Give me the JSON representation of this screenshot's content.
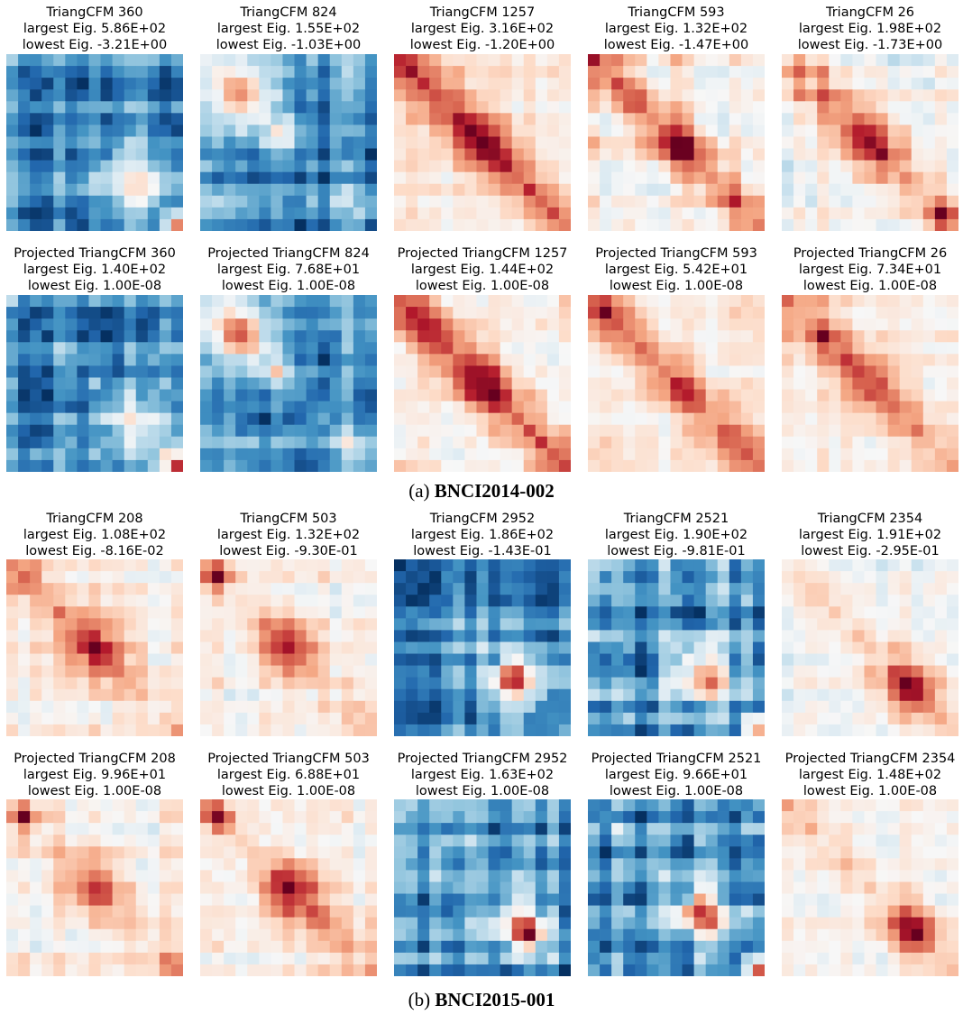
{
  "colormap": "RdBu_r",
  "caption_a": {
    "prefix": "(a)",
    "dataset": "BNCI2014-002"
  },
  "caption_b": {
    "prefix": "(b)",
    "dataset": "BNCI2015-001"
  },
  "chart_data": [
    {
      "type": "heatmap",
      "title": [
        "TriangCFM 360",
        "largest Eig. 5.86E+02",
        "lowest Eig. -3.21E+00"
      ],
      "pattern": {
        "base": -0.7,
        "diag_amp": 0.1,
        "hot": [
          10,
          11
        ],
        "hot_amp": 0.7,
        "corner": [
          14,
          14
        ],
        "corner_amp": 1.0,
        "seed": 11
      }
    },
    {
      "type": "heatmap",
      "title": [
        "TriangCFM 824",
        "largest Eig. 1.55E+02",
        "lowest Eig. -1.03E+00"
      ],
      "pattern": {
        "base": -0.65,
        "diag_amp": 0.15,
        "hot": [
          3,
          3
        ],
        "hot_amp": 0.9,
        "corner": [
          6,
          7
        ],
        "corner_amp": 0.8,
        "seed": 23
      }
    },
    {
      "type": "heatmap",
      "title": [
        "TriangCFM 1257",
        "largest Eig. 3.16E+02",
        "lowest Eig. -1.20E+00"
      ],
      "pattern": {
        "base": 0.05,
        "diag_amp": 1.0,
        "hot": [
          7,
          7
        ],
        "hot_amp": 0.5,
        "corner": [
          0,
          14
        ],
        "corner_amp": 0.4,
        "seed": 37
      }
    },
    {
      "type": "heatmap",
      "title": [
        "TriangCFM 593",
        "largest Eig. 1.32E+02",
        "lowest Eig. -1.47E+00"
      ],
      "pattern": {
        "base": 0.0,
        "diag_amp": 0.9,
        "hot": [
          7,
          7
        ],
        "hot_amp": 0.5,
        "corner": [
          1,
          7
        ],
        "corner_amp": 0.5,
        "seed": 41
      }
    },
    {
      "type": "heatmap",
      "title": [
        "TriangCFM 26",
        "largest Eig. 1.98E+02",
        "lowest Eig. -1.73E+00"
      ],
      "pattern": {
        "base": 0.05,
        "diag_amp": 0.7,
        "hot": [
          7,
          7
        ],
        "hot_amp": 0.5,
        "corner": [
          13,
          13
        ],
        "corner_amp": 0.6,
        "seed": 53
      }
    },
    {
      "type": "heatmap",
      "title": [
        "Projected TriangCFM 360",
        "largest Eig. 1.40E+02",
        "lowest Eig. 1.00E-08"
      ],
      "pattern": {
        "base": -0.7,
        "diag_amp": 0.15,
        "hot": [
          10,
          10
        ],
        "hot_amp": 0.6,
        "corner": [
          14,
          14
        ],
        "corner_amp": 1.0,
        "seed": 12
      }
    },
    {
      "type": "heatmap",
      "title": [
        "Projected TriangCFM 824",
        "largest Eig. 7.68E+01",
        "lowest Eig. 1.00E-08"
      ],
      "pattern": {
        "base": -0.65,
        "diag_amp": 0.3,
        "hot": [
          3,
          3
        ],
        "hot_amp": 0.9,
        "corner": [
          6,
          6
        ],
        "corner_amp": 0.7,
        "seed": 24
      }
    },
    {
      "type": "heatmap",
      "title": [
        "Projected TriangCFM 1257",
        "largest Eig. 1.44E+02",
        "lowest Eig. 1.00E-08"
      ],
      "pattern": {
        "base": 0.05,
        "diag_amp": 1.0,
        "hot": [
          7,
          7
        ],
        "hot_amp": 0.5,
        "corner": [
          0,
          14
        ],
        "corner_amp": 0.4,
        "seed": 38
      }
    },
    {
      "type": "heatmap",
      "title": [
        "Projected TriangCFM 593",
        "largest Eig. 5.42E+01",
        "lowest Eig. 1.00E-08"
      ],
      "pattern": {
        "base": 0.0,
        "diag_amp": 0.9,
        "hot": [
          7,
          7
        ],
        "hot_amp": 0.4,
        "corner": [
          1,
          1
        ],
        "corner_amp": 0.6,
        "seed": 42
      }
    },
    {
      "type": "heatmap",
      "title": [
        "Projected TriangCFM 26",
        "largest Eig. 7.34E+01",
        "lowest Eig. 1.00E-08"
      ],
      "pattern": {
        "base": 0.05,
        "diag_amp": 0.7,
        "hot": [
          7,
          7
        ],
        "hot_amp": 0.5,
        "corner": [
          3,
          3
        ],
        "corner_amp": 0.6,
        "seed": 54
      }
    },
    {
      "type": "heatmap",
      "title": [
        "TriangCFM 208",
        "largest Eig. 1.08E+02",
        "lowest Eig. -8.16E-02"
      ],
      "pattern": {
        "base": 0.05,
        "diag_amp": 0.4,
        "hot": [
          7,
          7
        ],
        "hot_amp": 0.8,
        "corner": [
          1,
          1
        ],
        "corner_amp": 0.9,
        "seed": 61
      }
    },
    {
      "type": "heatmap",
      "title": [
        "TriangCFM 503",
        "largest Eig. 1.32E+02",
        "lowest Eig. -9.30E-01"
      ],
      "pattern": {
        "base": 0.05,
        "diag_amp": 0.4,
        "hot": [
          7,
          7
        ],
        "hot_amp": 0.8,
        "corner": [
          1,
          1
        ],
        "corner_amp": 0.9,
        "seed": 67
      }
    },
    {
      "type": "heatmap",
      "title": [
        "TriangCFM 2952",
        "largest Eig. 1.86E+02",
        "lowest Eig. -1.43E-01"
      ],
      "pattern": {
        "base": -0.7,
        "diag_amp": 0.05,
        "hot": [
          10,
          10
        ],
        "hot_amp": 0.9,
        "corner": [
          10,
          9
        ],
        "corner_amp": 0.8,
        "seed": 71
      }
    },
    {
      "type": "heatmap",
      "title": [
        "TriangCFM 2521",
        "largest Eig. 1.90E+02",
        "lowest Eig. -9.81E-01"
      ],
      "pattern": {
        "base": -0.55,
        "diag_amp": 0.1,
        "hot": [
          9,
          9
        ],
        "hot_amp": 0.8,
        "corner": [
          14,
          14
        ],
        "corner_amp": 0.9,
        "seed": 79
      }
    },
    {
      "type": "heatmap",
      "title": [
        "TriangCFM 2354",
        "largest Eig. 1.91E+02",
        "lowest Eig. -2.95E-01"
      ],
      "pattern": {
        "base": 0.0,
        "diag_amp": 0.5,
        "hot": [
          10,
          10
        ],
        "hot_amp": 0.8,
        "corner": [
          11,
          11
        ],
        "corner_amp": 0.8,
        "seed": 83
      }
    },
    {
      "type": "heatmap",
      "title": [
        "Projected TriangCFM 208",
        "largest Eig. 9.96E+01",
        "lowest Eig. 1.00E-08"
      ],
      "pattern": {
        "base": 0.05,
        "diag_amp": 0.4,
        "hot": [
          7,
          7
        ],
        "hot_amp": 0.8,
        "corner": [
          1,
          1
        ],
        "corner_amp": 0.9,
        "seed": 62
      }
    },
    {
      "type": "heatmap",
      "title": [
        "Projected TriangCFM 503",
        "largest Eig. 6.88E+01",
        "lowest Eig. 1.00E-08"
      ],
      "pattern": {
        "base": 0.05,
        "diag_amp": 0.4,
        "hot": [
          7,
          7
        ],
        "hot_amp": 0.8,
        "corner": [
          1,
          1
        ],
        "corner_amp": 0.9,
        "seed": 68
      }
    },
    {
      "type": "heatmap",
      "title": [
        "Projected TriangCFM 2952",
        "largest Eig. 1.63E+02",
        "lowest Eig. 1.00E-08"
      ],
      "pattern": {
        "base": -0.7,
        "diag_amp": 0.05,
        "hot": [
          10,
          10
        ],
        "hot_amp": 0.9,
        "corner": [
          11,
          11
        ],
        "corner_amp": 0.8,
        "seed": 72
      }
    },
    {
      "type": "heatmap",
      "title": [
        "Projected TriangCFM 2521",
        "largest Eig. 9.66E+01",
        "lowest Eig. 1.00E-08"
      ],
      "pattern": {
        "base": -0.55,
        "diag_amp": 0.1,
        "hot": [
          9,
          9
        ],
        "hot_amp": 0.8,
        "corner": [
          14,
          14
        ],
        "corner_amp": 0.9,
        "seed": 80
      }
    },
    {
      "type": "heatmap",
      "title": [
        "Projected TriangCFM 2354",
        "largest Eig. 1.48E+02",
        "lowest Eig. 1.00E-08"
      ],
      "pattern": {
        "base": 0.0,
        "diag_amp": 0.5,
        "hot": [
          10,
          10
        ],
        "hot_amp": 0.8,
        "corner": [
          11,
          11
        ],
        "corner_amp": 0.8,
        "seed": 84
      }
    }
  ]
}
